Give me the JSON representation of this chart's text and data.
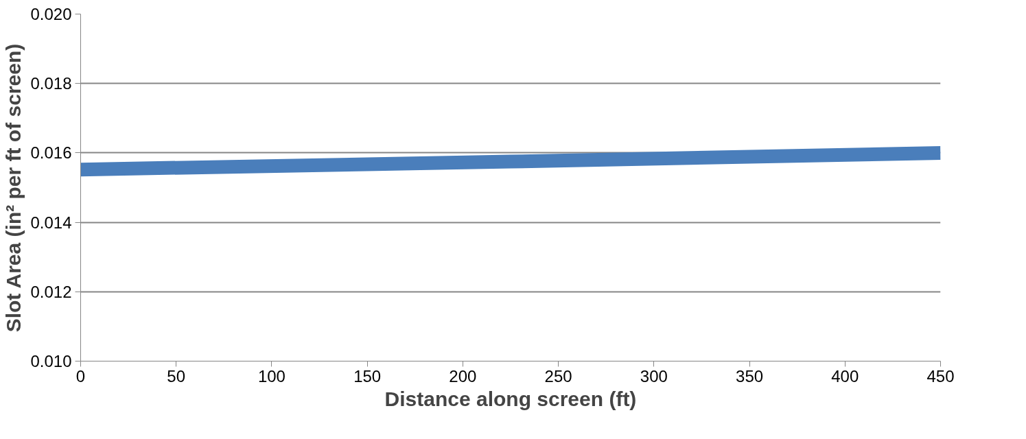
{
  "chart_data": {
    "type": "line",
    "xlabel": "Distance along screen (ft)",
    "ylabel": "Slot Area (in² per ft of screen)",
    "x": [
      0,
      225,
      450
    ],
    "series": [
      {
        "color": "#4a7ebb",
        "values": [
          0.01552,
          0.01575,
          0.016
        ]
      }
    ],
    "xlim": [
      0,
      450
    ],
    "xticks": [
      0,
      50,
      100,
      150,
      200,
      250,
      300,
      350,
      400,
      450
    ],
    "ylim": [
      0.01,
      0.02
    ],
    "yticks": [
      {
        "value": 0.01,
        "label": "0.010"
      },
      {
        "value": 0.012,
        "label": "0.012"
      },
      {
        "value": 0.014,
        "label": "0.014"
      },
      {
        "value": 0.016,
        "label": "0.016"
      },
      {
        "value": 0.018,
        "label": "0.018"
      },
      {
        "value": 0.02,
        "label": "0.020"
      }
    ],
    "grid": "y",
    "marker": "none",
    "line_style": "solid"
  }
}
